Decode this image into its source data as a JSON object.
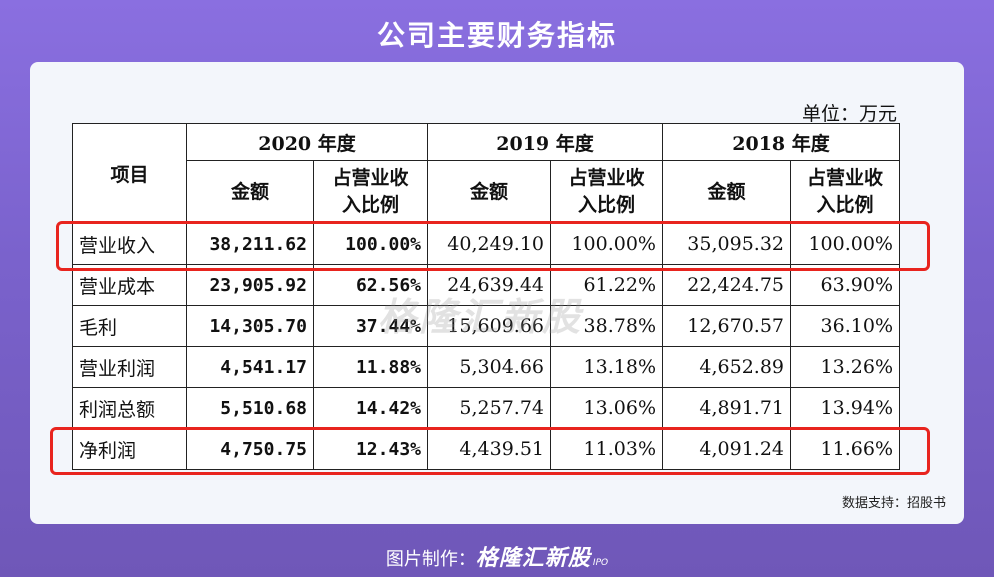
{
  "title": "公司主要财务指标",
  "unit": "单位：万元",
  "table": {
    "item_header": "项目",
    "years": [
      "2020 年度",
      "2019 年度",
      "2018 年度"
    ],
    "amount_header": "金额",
    "pct_header_line1": "占营业收",
    "pct_header_line2": "入比例",
    "rows": [
      {
        "label": "营业收入",
        "v2020": "38,211.62",
        "p2020": "100.00%",
        "v2019": "40,249.10",
        "p2019": "100.00%",
        "v2018": "35,095.32",
        "p2018": "100.00%"
      },
      {
        "label": "营业成本",
        "v2020": "23,905.92",
        "p2020": "62.56%",
        "v2019": "24,639.44",
        "p2019": "61.22%",
        "v2018": "22,424.75",
        "p2018": "63.90%"
      },
      {
        "label": "毛利",
        "v2020": "14,305.70",
        "p2020": "37.44%",
        "v2019": "15,609.66",
        "p2019": "38.78%",
        "v2018": "12,670.57",
        "p2018": "36.10%"
      },
      {
        "label": "营业利润",
        "v2020": "4,541.17",
        "p2020": "11.88%",
        "v2019": "5,304.66",
        "p2019": "13.18%",
        "v2018": "4,652.89",
        "p2018": "13.26%"
      },
      {
        "label": "利润总额",
        "v2020": "5,510.68",
        "p2020": "14.42%",
        "v2019": "5,257.74",
        "p2019": "13.06%",
        "v2018": "4,891.71",
        "p2018": "13.94%"
      },
      {
        "label": "净利润",
        "v2020": "4,750.75",
        "p2020": "12.43%",
        "v2019": "4,439.51",
        "p2019": "11.03%",
        "v2018": "4,091.24",
        "p2018": "11.66%"
      }
    ]
  },
  "watermark": "格隆汇新股",
  "source": "数据支持：招股书",
  "footer": {
    "prefix": "图片制作：",
    "brand": "格隆汇新股",
    "ipo": "IPO"
  },
  "colors": {
    "highlight": "#e8241e",
    "background": "#7a62cc"
  }
}
